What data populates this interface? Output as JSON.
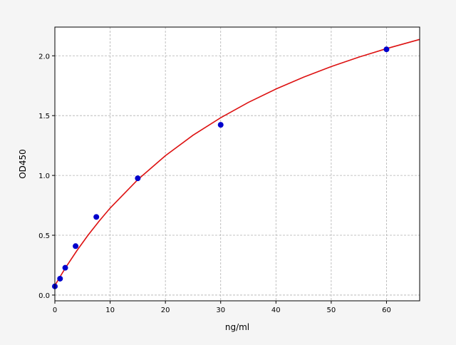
{
  "chart_data": {
    "type": "scatter",
    "title": "",
    "xlabel": "ng/ml",
    "ylabel": "OD450",
    "xlim": [
      0,
      66
    ],
    "ylim": [
      -0.048,
      2.24
    ],
    "xticks": [
      0,
      10,
      20,
      30,
      40,
      50,
      60
    ],
    "xtick_labels": [
      "0",
      "10",
      "20",
      "30",
      "40",
      "50",
      "60"
    ],
    "yticks": [
      0.0,
      0.5,
      1.0,
      1.5,
      2.0
    ],
    "ytick_labels": [
      "0.0",
      "0.5",
      "1.0",
      "1.5",
      "2.0"
    ],
    "grid": true,
    "colors": {
      "points": "#0000cc",
      "curve": "#dd1111",
      "grid": "#b0b0b0"
    },
    "points": {
      "x": [
        0,
        0.94,
        1.875,
        3.75,
        7.5,
        15,
        30,
        60
      ],
      "y": [
        0.073,
        0.137,
        0.228,
        0.409,
        0.653,
        0.976,
        1.423,
        2.054
      ]
    },
    "fit_curve": {
      "x": [
        0,
        1,
        2,
        4,
        6,
        8,
        10,
        15,
        20,
        25,
        30,
        35,
        40,
        45,
        50,
        55,
        60,
        66
      ],
      "y": [
        0.08,
        0.158,
        0.233,
        0.372,
        0.5,
        0.618,
        0.727,
        0.965,
        1.165,
        1.336,
        1.482,
        1.61,
        1.722,
        1.821,
        1.91,
        1.989,
        2.06,
        2.137
      ]
    }
  }
}
